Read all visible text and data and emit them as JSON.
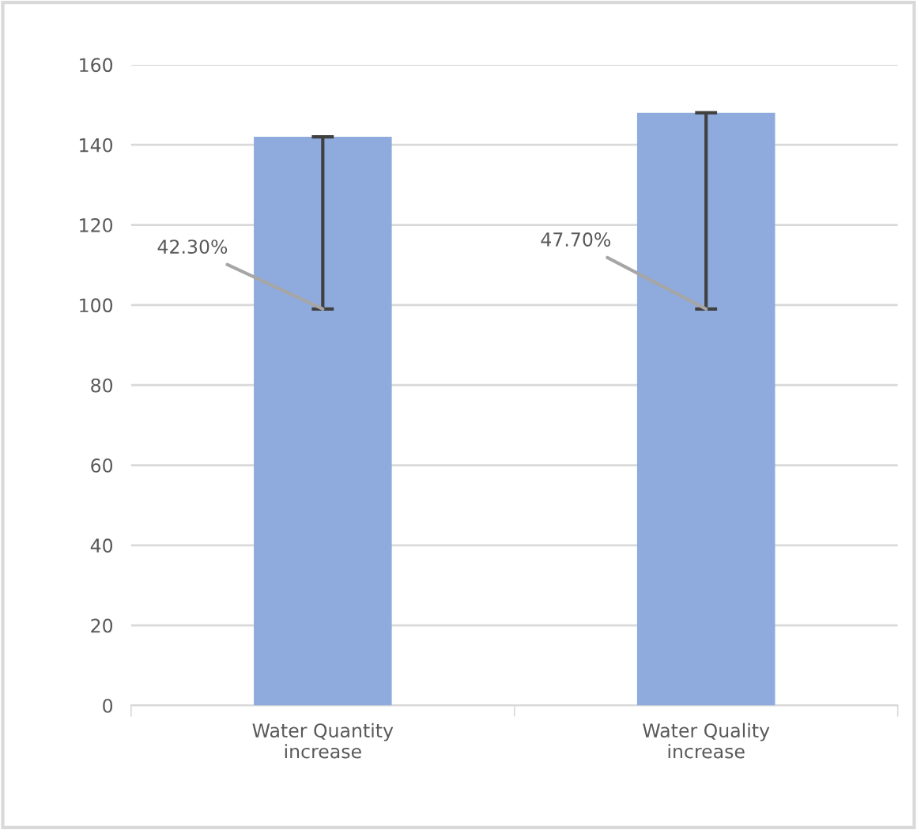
{
  "chart_data": {
    "type": "bar",
    "categories": [
      "Water Quantity\nincrease",
      "Water Quality\nincrease"
    ],
    "series": [
      {
        "color": "#8faadc",
        "values": [
          142,
          148
        ],
        "errors": [
          [
            99,
            142
          ],
          [
            99,
            148
          ]
        ]
      }
    ],
    "ylim": [
      0,
      160
    ],
    "yticks": [
      0,
      20,
      40,
      60,
      80,
      100,
      120,
      140,
      160
    ],
    "grid": "y",
    "annotations": [
      {
        "text": "42.30%",
        "x": "Water Quantity\nincrease",
        "y": 99
      },
      {
        "text": "47.70%",
        "x": "Water Quality\nincrease",
        "y": 99
      }
    ]
  }
}
